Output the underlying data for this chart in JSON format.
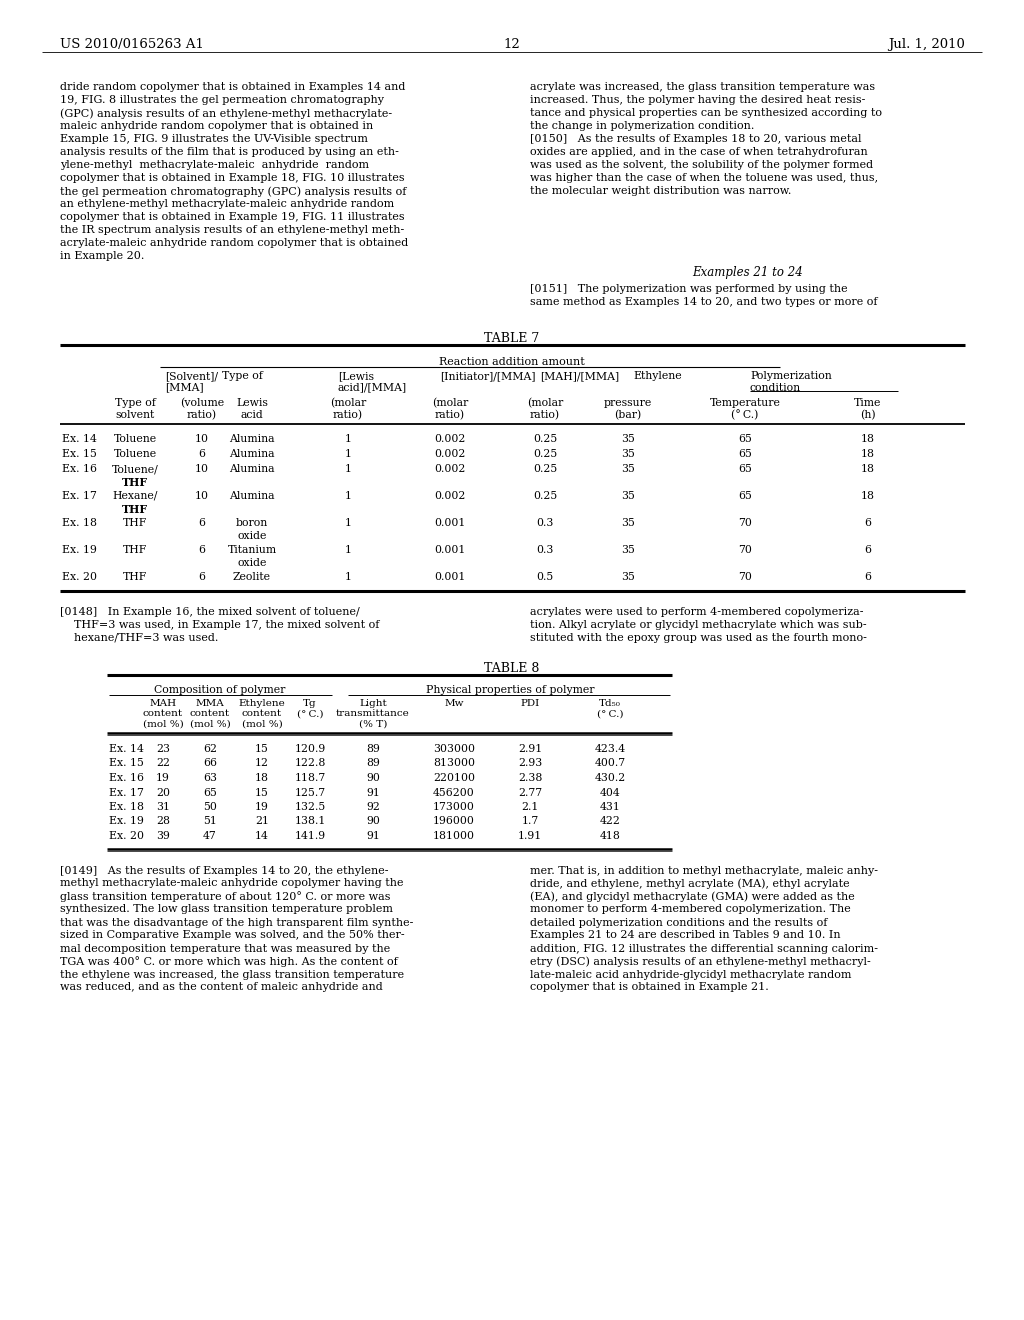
{
  "page_number": "12",
  "patent_number": "US 2010/0165263 A1",
  "patent_date": "Jul. 1, 2010",
  "bg_color": "#ffffff",
  "left_col_text": [
    "dride random copolymer that is obtained in Examples 14 and",
    "19, FIG. 8 illustrates the gel permeation chromatography",
    "(GPC) analysis results of an ethylene-methyl methacrylate-",
    "maleic anhydride random copolymer that is obtained in",
    "Example 15, FIG. 9 illustrates the UV-Visible spectrum",
    "analysis results of the film that is produced by using an eth-",
    "ylene-methyl  methacrylate-maleic  anhydride  random",
    "copolymer that is obtained in Example 18, FIG. 10 illustrates",
    "the gel permeation chromatography (GPC) analysis results of",
    "an ethylene-methyl methacrylate-maleic anhydride random",
    "copolymer that is obtained in Example 19, FIG. 11 illustrates",
    "the IR spectrum analysis results of an ethylene-methyl meth-",
    "acrylate-maleic anhydride random copolymer that is obtained",
    "in Example 20."
  ],
  "right_col_text": [
    "acrylate was increased, the glass transition temperature was",
    "increased. Thus, the polymer having the desired heat resis-",
    "tance and physical properties can be synthesized according to",
    "the change in polymerization condition.",
    "[0150]   As the results of Examples 18 to 20, various metal",
    "oxides are applied, and in the case of when tetrahydrofuran",
    "was used as the solvent, the solubility of the polymer formed",
    "was higher than the case of when the toluene was used, thus,",
    "the molecular weight distribution was narrow."
  ],
  "examples_21_24": "Examples 21 to 24",
  "para_0151_lines": [
    "[0151]   The polymerization was performed by using the",
    "same method as Examples 14 to 20, and two types or more of"
  ],
  "table7_title": "TABLE 7",
  "table7_reaction_span": "Reaction addition amount",
  "table7_data": [
    [
      "Ex. 14",
      "Toluene",
      "10",
      "Alumina",
      "1",
      "0.002",
      "0.25",
      "35",
      "65",
      "18"
    ],
    [
      "Ex. 15",
      "Toluene",
      "6",
      "Alumina",
      "1",
      "0.002",
      "0.25",
      "35",
      "65",
      "18"
    ],
    [
      "Ex. 16",
      "Toluene/\nTHF",
      "10",
      "Alumina",
      "1",
      "0.002",
      "0.25",
      "35",
      "65",
      "18"
    ],
    [
      "Ex. 17",
      "Hexane/\nTHF",
      "10",
      "Alumina",
      "1",
      "0.002",
      "0.25",
      "35",
      "65",
      "18"
    ],
    [
      "Ex. 18",
      "THF",
      "6",
      "boron\noxide",
      "1",
      "0.001",
      "0.3",
      "35",
      "70",
      "6"
    ],
    [
      "Ex. 19",
      "THF",
      "6",
      "Titanium\noxide",
      "1",
      "0.001",
      "0.3",
      "35",
      "70",
      "6"
    ],
    [
      "Ex. 20",
      "THF",
      "6",
      "Zeolite",
      "1",
      "0.001",
      "0.5",
      "35",
      "70",
      "6"
    ]
  ],
  "para_0148_left": [
    "[0148]   In Example 16, the mixed solvent of toluene/",
    "    THF=3 was used, in Example 17, the mixed solvent of",
    "    hexane/THF=3 was used."
  ],
  "para_0148_right": [
    "acrylates were used to perform 4-membered copolymeriza-",
    "tion. Alkyl acrylate or glycidyl methacrylate which was sub-",
    "stituted with the epoxy group was used as the fourth mono-"
  ],
  "table8_title": "TABLE 8",
  "table8_comp_header": "Composition of polymer",
  "table8_phys_header": "Physical properties of polymer",
  "table8_data": [
    [
      "Ex. 14",
      "23",
      "62",
      "15",
      "120.9",
      "89",
      "303000",
      "2.91",
      "423.4"
    ],
    [
      "Ex. 15",
      "22",
      "66",
      "12",
      "122.8",
      "89",
      "813000",
      "2.93",
      "400.7"
    ],
    [
      "Ex. 16",
      "19",
      "63",
      "18",
      "118.7",
      "90",
      "220100",
      "2.38",
      "430.2"
    ],
    [
      "Ex. 17",
      "20",
      "65",
      "15",
      "125.7",
      "91",
      "456200",
      "2.77",
      "404"
    ],
    [
      "Ex. 18",
      "31",
      "50",
      "19",
      "132.5",
      "92",
      "173000",
      "2.1",
      "431"
    ],
    [
      "Ex. 19",
      "28",
      "51",
      "21",
      "138.1",
      "90",
      "196000",
      "1.7",
      "422"
    ],
    [
      "Ex. 20",
      "39",
      "47",
      "14",
      "141.9",
      "91",
      "181000",
      "1.91",
      "418"
    ]
  ],
  "para_0149_left": [
    "[0149]   As the results of Examples 14 to 20, the ethylene-",
    "methyl methacrylate-maleic anhydride copolymer having the",
    "glass transition temperature of about 120° C. or more was",
    "synthesized. The low glass transition temperature problem",
    "that was the disadvantage of the high transparent film synthe-",
    "sized in Comparative Example was solved, and the 50% ther-",
    "mal decomposition temperature that was measured by the",
    "TGA was 400° C. or more which was high. As the content of",
    "the ethylene was increased, the glass transition temperature",
    "was reduced, and as the content of maleic anhydride and"
  ],
  "para_0149_right": [
    "mer. That is, in addition to methyl methacrylate, maleic anhy-",
    "dride, and ethylene, methyl acrylate (MA), ethyl acrylate",
    "(EA), and glycidyl methacrylate (GMA) were added as the",
    "monomer to perform 4-membered copolymerization. The",
    "detailed polymerization conditions and the results of",
    "Examples 21 to 24 are described in Tables 9 and 10. In",
    "addition, FIG. 12 illustrates the differential scanning calorim-",
    "etry (DSC) analysis results of an ethylene-methyl methacryl-",
    "late-maleic acid anhydride-glycidyl methacrylate random",
    "copolymer that is obtained in Example 21."
  ]
}
